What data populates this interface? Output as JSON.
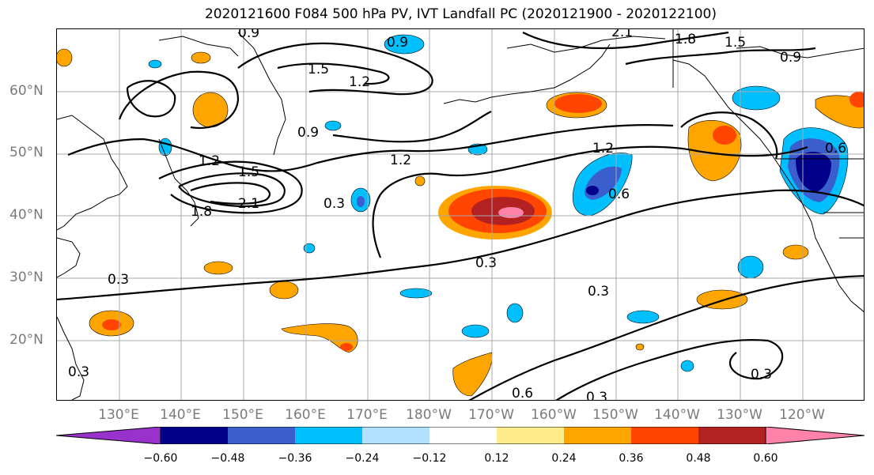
{
  "title": "2020121600 F084 500 hPa PV, IVT Landfall PC (2020121900 - 2020122100)",
  "lat_labels": [
    "60°N",
    "50°N",
    "40°N",
    "30°N",
    "20°N"
  ],
  "lon_labels": [
    "130°E",
    "140°E",
    "150°E",
    "160°E",
    "170°E",
    "180°W",
    "170°W",
    "160°W",
    "150°W",
    "140°W",
    "130°W",
    "120°W"
  ],
  "colorbar": {
    "ticks": [
      "−0.60",
      "−0.48",
      "−0.36",
      "−0.24",
      "−0.12",
      "0.12",
      "0.24",
      "0.36",
      "0.48",
      "0.60"
    ],
    "colors": [
      "#9932cc",
      "#00008b",
      "#3a5fcd",
      "#00bfff",
      "#b0e2ff",
      "#ffffff",
      "#ffec8b",
      "#ffa500",
      "#ff4500",
      "#b22222",
      "#ff82ab"
    ]
  },
  "contour_labels": [
    "0.9",
    "0.9",
    "2.1",
    "1.8",
    "1.5",
    "0.9",
    "1.5",
    "1.2",
    "0.9",
    "1.2",
    "1.5",
    "2.1",
    "1.8",
    "0.3",
    "1.2",
    "1.2",
    "0.6",
    "0.3",
    "0.3",
    "0.3",
    "0.6",
    "0.3",
    "0.6",
    "0.3",
    "0.3"
  ]
}
